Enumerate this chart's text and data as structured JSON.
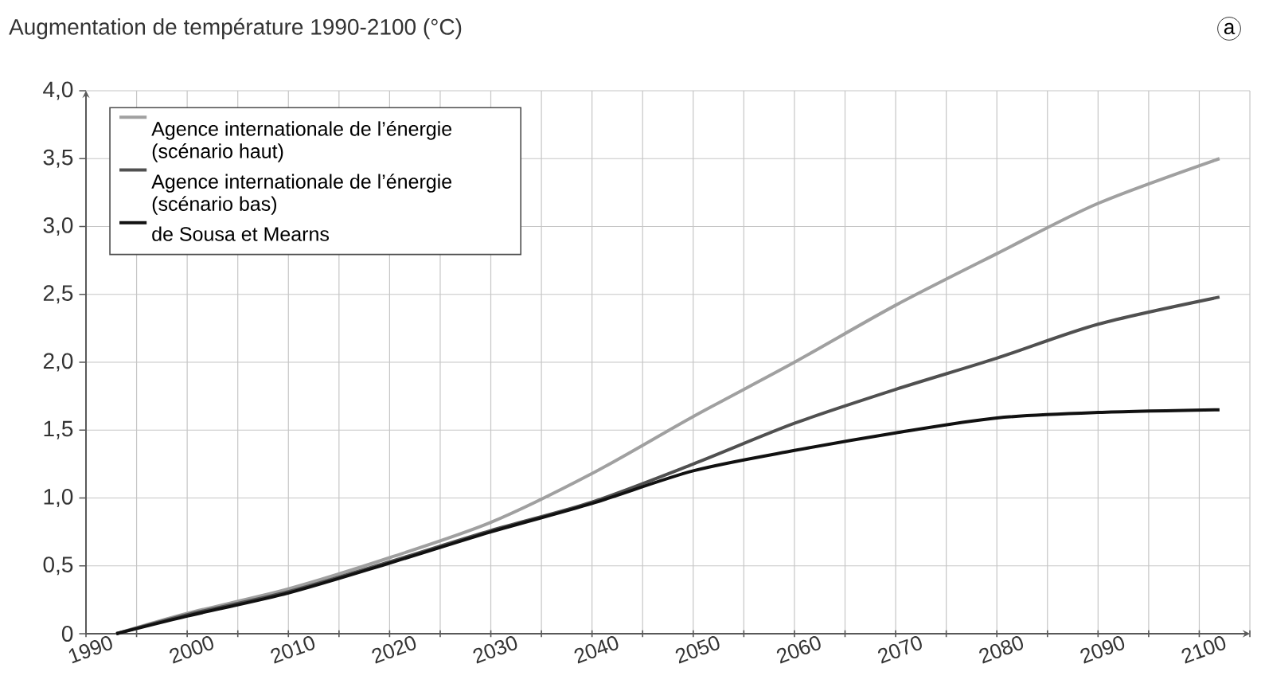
{
  "chart_data": {
    "type": "line",
    "title": "Augmentation de température 1990-2100 (°C)",
    "annotations": [
      "a"
    ],
    "x": [
      1993,
      2000,
      2010,
      2020,
      2030,
      2040,
      2050,
      2060,
      2070,
      2080,
      2090,
      2102
    ],
    "series": [
      {
        "name": "Agence internationale de l’énergie (scénario haut)",
        "color": "#a0a0a0",
        "values": [
          0,
          0.15,
          0.33,
          0.56,
          0.82,
          1.18,
          1.6,
          2.0,
          2.42,
          2.8,
          3.17,
          3.5
        ]
      },
      {
        "name": "Agence internationale de l’énergie (scénario bas)",
        "color": "#505050",
        "values": [
          0,
          0.14,
          0.31,
          0.53,
          0.76,
          0.97,
          1.25,
          1.55,
          1.8,
          2.03,
          2.28,
          2.48
        ]
      },
      {
        "name": "de Sousa et Mearns",
        "color": "#111111",
        "values": [
          0,
          0.13,
          0.3,
          0.52,
          0.75,
          0.96,
          1.2,
          1.35,
          1.48,
          1.59,
          1.63,
          1.65
        ]
      }
    ],
    "xlim": [
      1990,
      2105
    ],
    "xticks": [
      1990,
      {
        "value": 1995,
        "label": null
      },
      2000,
      {
        "value": 2005,
        "label": null
      },
      2010,
      {
        "value": 2015,
        "label": null
      },
      2020,
      {
        "value": 2025,
        "label": null
      },
      2030,
      {
        "value": 2035,
        "label": null
      },
      2040,
      {
        "value": 2045,
        "label": null
      },
      2050,
      {
        "value": 2055,
        "label": null
      },
      2060,
      {
        "value": 2065,
        "label": null
      },
      2070,
      {
        "value": 2075,
        "label": null
      },
      2080,
      {
        "value": 2085,
        "label": null
      },
      2090,
      {
        "value": 2095,
        "label": null
      },
      2100,
      {
        "value": 2105,
        "label": null
      }
    ],
    "ylim": [
      0,
      4
    ],
    "yticks": [
      0,
      {
        "value": 0.5,
        "label": "0,5"
      },
      {
        "value": 1,
        "label": "1,0"
      },
      {
        "value": 1.5,
        "label": "1,5"
      },
      {
        "value": 2,
        "label": "2,0"
      },
      {
        "value": 2.5,
        "label": "2,5"
      },
      {
        "value": 3,
        "label": "3,0"
      },
      {
        "value": 3.5,
        "label": "3,5"
      },
      {
        "value": 4,
        "label": "4,0"
      }
    ],
    "grid": true,
    "legend": "top left",
    "marker": "none",
    "line_style": "solid"
  }
}
